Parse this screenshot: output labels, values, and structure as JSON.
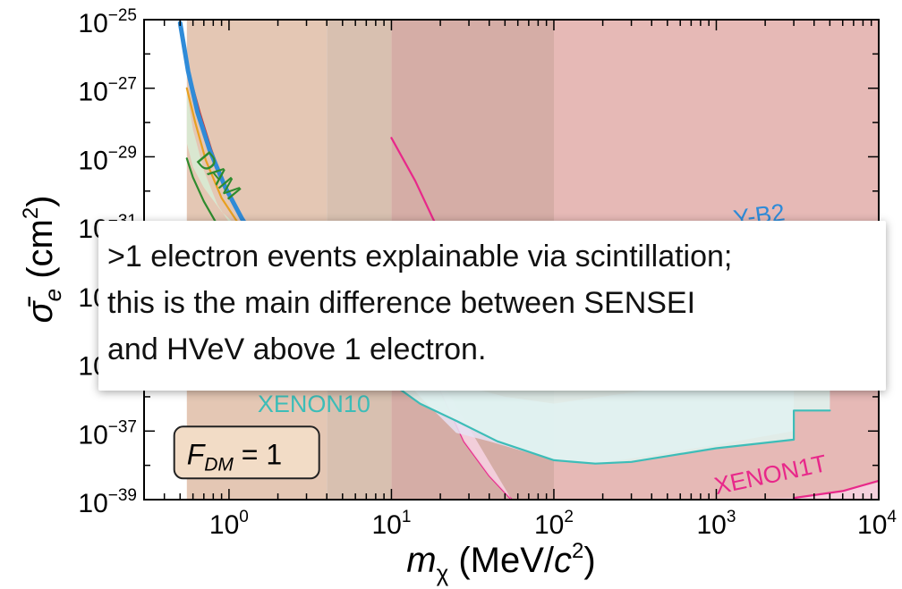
{
  "chart_data": {
    "type": "area",
    "xscale": "log",
    "yscale": "log",
    "xlim": [
      0.3,
      10000
    ],
    "ylim": [
      1e-39,
      1e-25
    ],
    "xlabel": {
      "main": "m",
      "sub": "χ",
      "unit_prefix": " (MeV/",
      "unit_c": "c",
      "unit_sup": "2",
      "unit_suffix": ")"
    },
    "ylabel": {
      "main": "σ̄",
      "sub": "e",
      "unit_prefix": " (cm",
      "unit_sup": "2",
      "unit_suffix": ")"
    },
    "x_ticks": [
      {
        "base": "10",
        "exp": "0",
        "value": 1
      },
      {
        "base": "10",
        "exp": "1",
        "value": 10
      },
      {
        "base": "10",
        "exp": "2",
        "value": 100
      },
      {
        "base": "10",
        "exp": "3",
        "value": 1000
      },
      {
        "base": "10",
        "exp": "4",
        "value": 10000
      }
    ],
    "y_ticks": [
      {
        "base": "10",
        "exp": "−25",
        "value": -25
      },
      {
        "base": "10",
        "exp": "−27",
        "value": -27
      },
      {
        "base": "10",
        "exp": "−29",
        "value": -29
      },
      {
        "base": "10",
        "exp": "−31",
        "value": -31
      },
      {
        "base": "10",
        "exp": "−33",
        "value": -33
      },
      {
        "base": "10",
        "exp": "−35",
        "value": -35
      },
      {
        "base": "10",
        "exp": "−37",
        "value": -37
      },
      {
        "base": "10",
        "exp": "−39",
        "value": -39
      }
    ],
    "regions": [
      {
        "label": "",
        "color": "#e4c7b4",
        "points": [
          [
            0.55,
            -25
          ],
          [
            4,
            -25
          ],
          [
            4,
            -39
          ],
          [
            0.55,
            -39
          ]
        ]
      },
      {
        "label": "",
        "color": "#d8c0b0",
        "points": [
          [
            4,
            -25
          ],
          [
            10,
            -25
          ],
          [
            10,
            -39
          ],
          [
            4,
            -39
          ]
        ]
      },
      {
        "label": "",
        "color": "#d5ada6",
        "points": [
          [
            10,
            -25
          ],
          [
            100,
            -25
          ],
          [
            100,
            -39
          ],
          [
            10,
            -39
          ]
        ]
      },
      {
        "label": "",
        "color": "#e6b9b6",
        "points": [
          [
            100,
            -25
          ],
          [
            10000,
            -25
          ],
          [
            10000,
            -39
          ],
          [
            100,
            -39
          ]
        ]
      }
    ],
    "series": [
      {
        "name": "",
        "color": "#d7ecd5",
        "fill": true,
        "points": [
          [
            0.55,
            -27.1
          ],
          [
            0.6,
            -28.2
          ],
          [
            0.7,
            -29.4
          ],
          [
            0.85,
            -30.4
          ],
          [
            1.1,
            -31.2
          ],
          [
            1.6,
            -31.7
          ],
          [
            0.9,
            -30.6
          ],
          [
            0.7,
            -29.9
          ],
          [
            0.6,
            -29.3
          ],
          [
            0.55,
            -28.6
          ]
        ]
      },
      {
        "name": "",
        "color": "#e8a020",
        "fill": false,
        "points": [
          [
            0.55,
            -27.0
          ],
          [
            0.62,
            -28.0
          ],
          [
            0.72,
            -29.1
          ],
          [
            0.9,
            -30.2
          ],
          [
            1.2,
            -31.1
          ],
          [
            1.5,
            -31.7
          ]
        ]
      },
      {
        "name": "",
        "color": "#c43b3b",
        "fill": false,
        "points": [
          [
            0.57,
            -26.6
          ],
          [
            0.66,
            -27.7
          ],
          [
            0.78,
            -28.8
          ],
          [
            0.95,
            -29.9
          ],
          [
            1.25,
            -30.9
          ],
          [
            1.55,
            -31.6
          ]
        ]
      },
      {
        "name": "",
        "color": "#2f8bd8",
        "fill": false,
        "width": 5,
        "points": [
          [
            0.5,
            -25.1
          ],
          [
            0.56,
            -26.5
          ],
          [
            0.64,
            -27.7
          ],
          [
            0.76,
            -28.8
          ],
          [
            0.95,
            -29.9
          ],
          [
            1.2,
            -30.8
          ],
          [
            1.55,
            -31.6
          ]
        ]
      },
      {
        "name": "",
        "color": "#2f8bd8",
        "fill": false,
        "width": 5,
        "points": [
          [
            3000,
            -31.3
          ],
          [
            6000,
            -31.15
          ],
          [
            10000,
            -31.0
          ]
        ]
      },
      {
        "name": "",
        "color": "#2e8b2e",
        "fill": false,
        "points": [
          [
            0.55,
            -29.05
          ],
          [
            0.6,
            -29.6
          ],
          [
            0.7,
            -30.3
          ],
          [
            0.85,
            -31.0
          ],
          [
            1.0,
            -31.6
          ]
        ]
      },
      {
        "name": "",
        "color": "#e8288a",
        "fill": false,
        "points": [
          [
            10,
            -28.45
          ],
          [
            14,
            -29.7
          ],
          [
            18,
            -30.8
          ],
          [
            22,
            -31.6
          ]
        ]
      },
      {
        "name": "",
        "color": "#e8288a",
        "fill": false,
        "points": [
          [
            15,
            -34.5
          ],
          [
            20,
            -35.8
          ],
          [
            28,
            -37.3
          ],
          [
            40,
            -38.3
          ],
          [
            55,
            -39.0
          ]
        ]
      },
      {
        "name": "",
        "color": "#f7d3e3",
        "fill": true,
        "points": [
          [
            15,
            -34.5
          ],
          [
            20,
            -35.8
          ],
          [
            28,
            -37.3
          ],
          [
            40,
            -38.3
          ],
          [
            55,
            -39.0
          ],
          [
            10000,
            -39.0
          ],
          [
            10000,
            -38.5
          ],
          [
            6000,
            -38.75
          ],
          [
            3000,
            -38.95
          ],
          [
            1000,
            -39.0
          ],
          [
            300,
            -39.0
          ],
          [
            55,
            -39.0
          ]
        ]
      },
      {
        "name": "",
        "color": "#e8288a",
        "fill": false,
        "points": [
          [
            3000,
            -38.95
          ],
          [
            6000,
            -38.75
          ],
          [
            10000,
            -38.45
          ]
        ]
      },
      {
        "name": "",
        "color": "#e6e0f2",
        "fill": true,
        "points": [
          [
            10,
            -35.0
          ],
          [
            20,
            -35.5
          ],
          [
            50,
            -36.0
          ],
          [
            100,
            -36.2
          ],
          [
            3000,
            -35.2
          ],
          [
            3000,
            -37.0
          ],
          [
            1000,
            -37.4
          ],
          [
            300,
            -37.8
          ],
          [
            180,
            -37.95
          ],
          [
            100,
            -37.85
          ],
          [
            40,
            -37.3
          ],
          [
            25,
            -37.05
          ],
          [
            15,
            -36.0
          ],
          [
            10,
            -35.0
          ]
        ]
      },
      {
        "name": "",
        "color": "#dff4f1",
        "fill": true,
        "points": [
          [
            2.2,
            -35.0
          ],
          [
            5,
            -35.1
          ],
          [
            8,
            -35.3
          ],
          [
            10,
            -35.6
          ],
          [
            15,
            -36.2
          ],
          [
            25,
            -36.7
          ],
          [
            45,
            -37.3
          ],
          [
            100,
            -37.85
          ],
          [
            180,
            -37.95
          ],
          [
            300,
            -37.9
          ],
          [
            1000,
            -37.5
          ],
          [
            3000,
            -37.25
          ],
          [
            3000,
            -36.4
          ],
          [
            5000,
            -36.4
          ],
          [
            5000,
            -35.0
          ]
        ]
      },
      {
        "name": "",
        "color": "#3dbdb8",
        "fill": false,
        "points": [
          [
            2.2,
            -35.0
          ],
          [
            5,
            -35.1
          ],
          [
            8,
            -35.3
          ],
          [
            10,
            -35.6
          ],
          [
            15,
            -36.2
          ],
          [
            25,
            -36.7
          ],
          [
            45,
            -37.3
          ],
          [
            100,
            -37.85
          ],
          [
            180,
            -37.95
          ],
          [
            300,
            -37.9
          ],
          [
            1000,
            -37.5
          ],
          [
            3000,
            -37.25
          ],
          [
            3000,
            -36.4
          ],
          [
            5000,
            -36.4
          ]
        ]
      }
    ],
    "curve_labels": [
      {
        "text": "DAM",
        "color": "#2e8b2e",
        "x": 0.62,
        "y": -29.1,
        "rotate": 50
      },
      {
        "text": "XENON10",
        "color": "#3dbdb8",
        "x": 1.5,
        "y": -36.45,
        "rotate": 0
      },
      {
        "text": "XENON1T",
        "color": "#e8288a",
        "x": 1000,
        "y": -38.85,
        "rotate": -12
      },
      {
        "text": "Y-B2",
        "color": "#2f8bd8",
        "x": 1300,
        "y": -31.05,
        "rotate": -8
      }
    ],
    "annotation_box": {
      "label": "F",
      "sub": "DM",
      "rest": " = 1",
      "x": 0.46,
      "y": -37.6
    }
  },
  "overlay": {
    "lines": [
      ">1 electron events explainable via scintillation;",
      "this is the main difference between SENSEI",
      "and HVeV above 1 electron."
    ]
  }
}
